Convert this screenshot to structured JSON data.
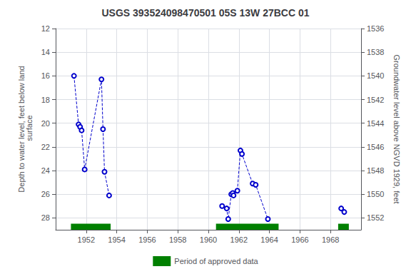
{
  "chart_data": {
    "type": "line",
    "title": "USGS 393524098470501 05S 13W 27BCC 01",
    "ylabel": "Depth to water level, feet below land\n surface",
    "y2label": "Groundwater level above NGVD 1929, feet",
    "xlim": [
      1950,
      1970
    ],
    "xticks": [
      1952,
      1954,
      1956,
      1958,
      1960,
      1962,
      1964,
      1966,
      1968
    ],
    "ylim": [
      29,
      12
    ],
    "yticks": [
      12,
      14,
      16,
      18,
      20,
      22,
      24,
      26,
      28
    ],
    "y2lim": [
      1553,
      1536
    ],
    "y2ticks": [
      1536,
      1538,
      1540,
      1542,
      1544,
      1546,
      1548,
      1550,
      1552
    ],
    "grid": true,
    "legend": "bottom",
    "series": [
      {
        "x": [
          1951.2,
          1951.5,
          1951.6,
          1951.7,
          1951.9,
          1953.0,
          1953.1,
          1953.2,
          1953.5
        ],
        "values": [
          16.0,
          20.1,
          20.3,
          20.6,
          23.9,
          16.3,
          20.5,
          24.1,
          26.1
        ],
        "color": "#0000cc",
        "line_style": "dashed",
        "marker": "hollow circle"
      },
      {
        "x": [
          1960.9,
          1961.2,
          1961.3,
          1961.5,
          1961.6,
          1961.65,
          1961.9,
          1962.1,
          1962.2,
          1962.9,
          1963.1,
          1963.9
        ],
        "values": [
          27.0,
          27.2,
          28.1,
          26.0,
          25.9,
          26.1,
          25.7,
          22.3,
          22.6,
          25.1,
          25.2,
          28.1
        ],
        "color": "#0000cc",
        "line_style": "dashed",
        "marker": "hollow circle"
      },
      {
        "x": [
          1968.7,
          1968.9
        ],
        "values": [
          27.2,
          27.5
        ],
        "color": "#0000cc",
        "line_style": "dashed",
        "marker": "hollow circle"
      }
    ],
    "approved_periods": {
      "name": "Period of approved data",
      "color": "#008000",
      "ranges": [
        [
          1951.0,
          1953.6
        ],
        [
          1960.5,
          1964.6
        ],
        [
          1968.5,
          1969.2
        ]
      ]
    }
  }
}
